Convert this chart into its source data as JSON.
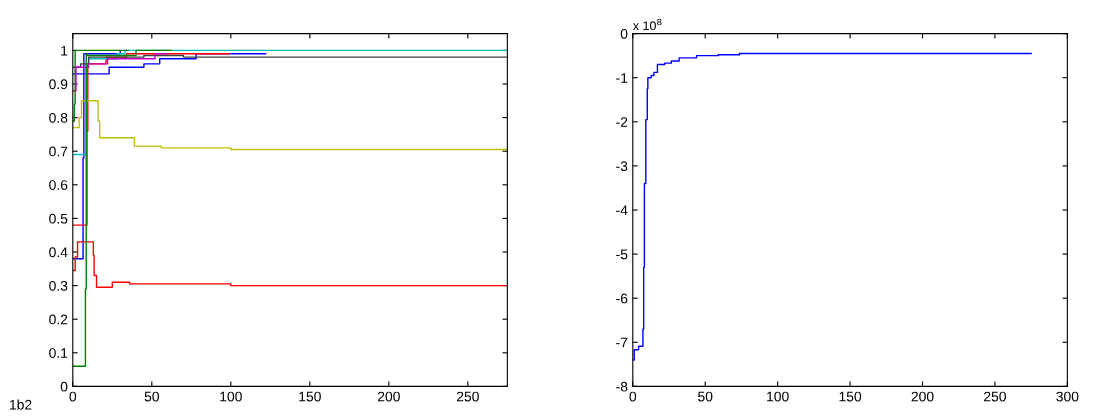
{
  "chart_data": [
    {
      "type": "step",
      "xlim": [
        0,
        275
      ],
      "ylim": [
        0,
        1.05
      ],
      "xticks": [
        0,
        50,
        100,
        150,
        200,
        250
      ],
      "yticks": [
        0,
        0.1,
        0.2,
        0.3,
        0.4,
        0.5,
        0.6,
        0.7,
        0.8,
        0.9,
        1
      ],
      "grid": false,
      "annotations": [
        "1b2"
      ],
      "series": [
        {
          "color": "#0000ff",
          "x": [
            0,
            23,
            45,
            55,
            78,
            122
          ],
          "values": [
            0.93,
            0.95,
            0.96,
            0.975,
            0.99,
            0.99
          ]
        },
        {
          "color": "#0000ff",
          "x": [
            0,
            6.5,
            7,
            30
          ],
          "values": [
            0.38,
            0.68,
            0.99,
            1.0
          ]
        },
        {
          "color": "#ff0000",
          "x": [
            0,
            1.5,
            3,
            13,
            13.5,
            15,
            25,
            36,
            100,
            275
          ],
          "values": [
            0.345,
            0.385,
            0.43,
            0.39,
            0.33,
            0.295,
            0.31,
            0.305,
            0.3,
            0.3
          ]
        },
        {
          "color": "#ff0000",
          "x": [
            0,
            9,
            9.5,
            21,
            34,
            99
          ],
          "values": [
            0.48,
            0.76,
            0.96,
            0.98,
            0.99,
            0.99
          ]
        },
        {
          "color": "#bfbf00",
          "x": [
            0,
            4,
            5.5,
            16,
            17,
            39,
            56,
            100,
            275
          ],
          "values": [
            0.77,
            0.8,
            0.85,
            0.79,
            0.74,
            0.715,
            0.71,
            0.705,
            0.705
          ]
        },
        {
          "color": "#00bfbf",
          "x": [
            0,
            8.5,
            10,
            28,
            33,
            275
          ],
          "values": [
            0.69,
            0.96,
            0.975,
            0.99,
            1.0,
            1.0
          ]
        },
        {
          "color": "#404040",
          "x": [
            0,
            5,
            10,
            45,
            70,
            275
          ],
          "values": [
            0.95,
            0.96,
            0.98,
            0.985,
            0.98,
            0.98
          ]
        },
        {
          "color": "#bf00bf",
          "x": [
            0,
            2,
            10,
            22,
            52,
            60
          ],
          "values": [
            0.88,
            0.95,
            0.96,
            0.975,
            0.99,
            0.99
          ]
        },
        {
          "color": "#008000",
          "x": [
            0,
            8,
            8.5,
            9,
            40,
            62
          ],
          "values": [
            0.06,
            0.29,
            0.99,
            0.985,
            1.0,
            1.0
          ]
        },
        {
          "color": "#008000",
          "x": [
            0,
            1,
            1.5,
            35
          ],
          "values": [
            0.79,
            0.84,
            1.0,
            1.0
          ]
        }
      ]
    },
    {
      "type": "step",
      "xlim": [
        0,
        300
      ],
      "ylim": [
        -8,
        0
      ],
      "xticks": [
        0,
        50,
        100,
        150,
        200,
        250,
        300
      ],
      "yticks": [
        -8,
        -7,
        -6,
        -5,
        -4,
        -3,
        -2,
        -1,
        0
      ],
      "grid": false,
      "annotations": [
        "x 10$^{8}$"
      ],
      "series": [
        {
          "color": "#0000ff",
          "x": [
            0,
            1,
            4,
            7,
            7.5,
            8,
            9,
            10,
            10.4,
            12.7,
            14.6,
            17,
            22,
            26.6,
            32,
            44,
            59,
            73.6,
            275
          ],
          "values": [
            -7.4,
            -7.17,
            -7.09,
            -6.7,
            -5.3,
            -3.4,
            -1.95,
            -1.25,
            -1.0,
            -0.95,
            -0.88,
            -0.7,
            -0.67,
            -0.62,
            -0.55,
            -0.5,
            -0.48,
            -0.45,
            -0.45
          ]
        }
      ]
    }
  ]
}
